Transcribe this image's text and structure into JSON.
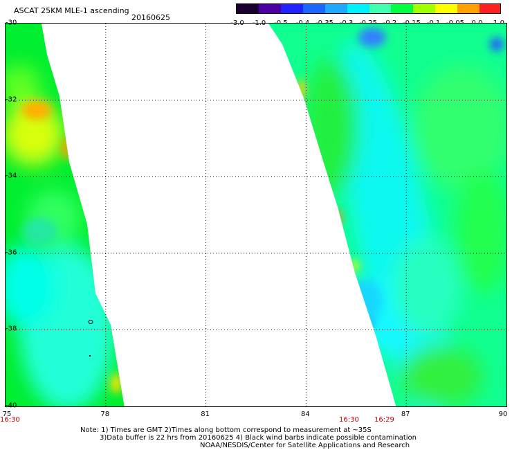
{
  "header": {
    "title": "ASCAT 25KM MLE-1 ascending",
    "date": "20160625"
  },
  "colorbar": {
    "ticks": [
      "-3.0",
      "-1.0",
      "-0.5",
      "-0.4",
      "-0.35",
      "-0.3",
      "-0.25",
      "-0.2",
      "-0.15",
      "-0.1",
      "-0.05",
      "0.0",
      "1.0"
    ],
    "colors": [
      "#1a0030",
      "#4a00a0",
      "#2222ff",
      "#1a66ff",
      "#20a8ff",
      "#00f0ff",
      "#40ffb0",
      "#00ff40",
      "#a0ff00",
      "#ffff00",
      "#ffa000",
      "#ff2020"
    ]
  },
  "map": {
    "lat_labels": [
      "-30",
      "-32",
      "-34",
      "-36",
      "-38",
      "-40"
    ],
    "lon_labels": [
      "75",
      "78",
      "81",
      "84",
      "87",
      "90"
    ],
    "time_labels": [
      {
        "text": "16:30",
        "at": "left"
      },
      {
        "text": "16:30",
        "at": "swath2-left"
      },
      {
        "text": "16:29",
        "at": "swath2-right"
      }
    ],
    "marker_symbol": "o"
  },
  "notes": {
    "line1": "Note: 1) Times are GMT 2)Times along bottom correspond to measurement at ~35S",
    "line2": "3)Data buffer is 22 hrs from 20160625 4) Black wind barbs indicate possible contamination",
    "line3": "NOAA/NESDIS/Center for Satellite Applications and Research"
  }
}
